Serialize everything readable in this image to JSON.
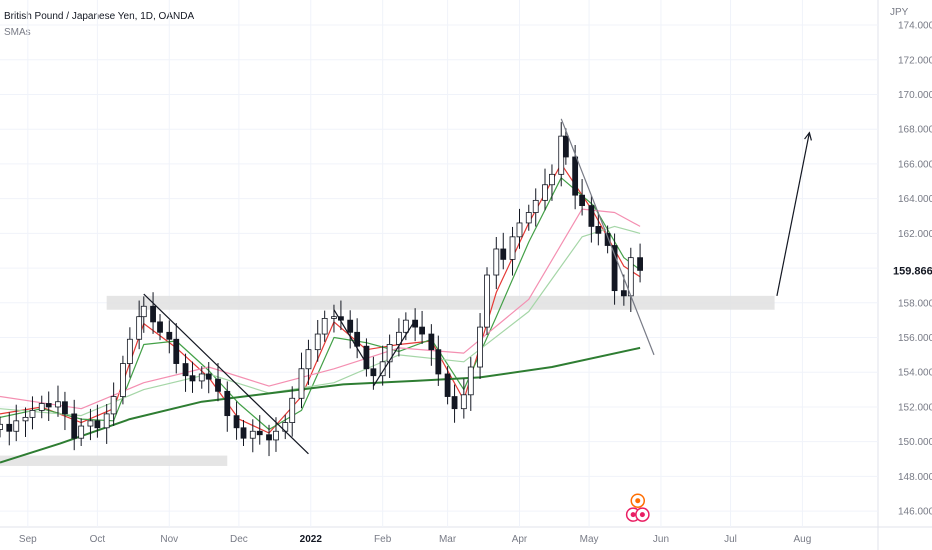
{
  "header": {
    "title": "British Pound / Japanese Yen, 1D, OANDA",
    "indicator": "SMAs"
  },
  "chart_data": {
    "type": "candlestick",
    "symbol": "British Pound / Japanese Yen",
    "interval": "1D",
    "source": "OANDA",
    "currency": "JPY",
    "current_price": "159.866",
    "ylim": [
      145.2,
      175.5
    ],
    "y_ticks": [
      "146.000",
      "148.000",
      "150.000",
      "152.000",
      "154.000",
      "156.000",
      "158.000",
      "160.000",
      "162.000",
      "164.000",
      "166.000",
      "168.000",
      "170.000",
      "172.000",
      "174.000"
    ],
    "x_ticks": [
      {
        "label": "Sep",
        "x": "2021-09-01"
      },
      {
        "label": "Oct",
        "x": "2021-10-01"
      },
      {
        "label": "Nov",
        "x": "2021-11-01"
      },
      {
        "label": "Dec",
        "x": "2021-12-01"
      },
      {
        "label": "2022",
        "x": "2022-01-01",
        "bold": true
      },
      {
        "label": "Feb",
        "x": "2022-02-01"
      },
      {
        "label": "Mar",
        "x": "2022-03-01"
      },
      {
        "label": "Apr",
        "x": "2022-04-01"
      },
      {
        "label": "May",
        "x": "2022-05-01"
      },
      {
        "label": "Jun",
        "x": "2022-06-01"
      },
      {
        "label": "Jul",
        "x": "2022-07-01"
      },
      {
        "label": "Aug",
        "x": "2022-08-01"
      }
    ],
    "closes": [
      {
        "x": "2021-08-20",
        "y": 151.0
      },
      {
        "x": "2021-08-24",
        "y": 150.6
      },
      {
        "x": "2021-08-27",
        "y": 151.2
      },
      {
        "x": "2021-08-31",
        "y": 151.4
      },
      {
        "x": "2021-09-03",
        "y": 151.8
      },
      {
        "x": "2021-09-07",
        "y": 152.2
      },
      {
        "x": "2021-09-10",
        "y": 152.0
      },
      {
        "x": "2021-09-14",
        "y": 152.3
      },
      {
        "x": "2021-09-17",
        "y": 151.6
      },
      {
        "x": "2021-09-21",
        "y": 150.2
      },
      {
        "x": "2021-09-24",
        "y": 150.9
      },
      {
        "x": "2021-09-28",
        "y": 151.2
      },
      {
        "x": "2021-10-01",
        "y": 150.8
      },
      {
        "x": "2021-10-05",
        "y": 151.6
      },
      {
        "x": "2021-10-08",
        "y": 152.6
      },
      {
        "x": "2021-10-12",
        "y": 154.5
      },
      {
        "x": "2021-10-15",
        "y": 155.9
      },
      {
        "x": "2021-10-19",
        "y": 157.2
      },
      {
        "x": "2021-10-21",
        "y": 157.8
      },
      {
        "x": "2021-10-25",
        "y": 156.9
      },
      {
        "x": "2021-10-28",
        "y": 156.3
      },
      {
        "x": "2021-11-01",
        "y": 155.9
      },
      {
        "x": "2021-11-04",
        "y": 154.5
      },
      {
        "x": "2021-11-08",
        "y": 153.8
      },
      {
        "x": "2021-11-11",
        "y": 153.5
      },
      {
        "x": "2021-11-15",
        "y": 153.9
      },
      {
        "x": "2021-11-18",
        "y": 153.6
      },
      {
        "x": "2021-11-22",
        "y": 152.9
      },
      {
        "x": "2021-11-26",
        "y": 151.5
      },
      {
        "x": "2021-11-30",
        "y": 150.8
      },
      {
        "x": "2021-12-03",
        "y": 150.2
      },
      {
        "x": "2021-12-07",
        "y": 150.6
      },
      {
        "x": "2021-12-10",
        "y": 150.4
      },
      {
        "x": "2021-12-14",
        "y": 150.1
      },
      {
        "x": "2021-12-17",
        "y": 150.6
      },
      {
        "x": "2021-12-21",
        "y": 151.1
      },
      {
        "x": "2021-12-24",
        "y": 152.5
      },
      {
        "x": "2021-12-28",
        "y": 154.2
      },
      {
        "x": "2021-12-31",
        "y": 155.3
      },
      {
        "x": "2022-01-04",
        "y": 156.2
      },
      {
        "x": "2022-01-07",
        "y": 157.1
      },
      {
        "x": "2022-01-11",
        "y": 157.2
      },
      {
        "x": "2022-01-14",
        "y": 157.0
      },
      {
        "x": "2022-01-18",
        "y": 156.3
      },
      {
        "x": "2022-01-21",
        "y": 155.5
      },
      {
        "x": "2022-01-25",
        "y": 154.2
      },
      {
        "x": "2022-01-28",
        "y": 153.8
      },
      {
        "x": "2022-02-01",
        "y": 154.6
      },
      {
        "x": "2022-02-04",
        "y": 155.6
      },
      {
        "x": "2022-02-08",
        "y": 156.3
      },
      {
        "x": "2022-02-11",
        "y": 157.0
      },
      {
        "x": "2022-02-15",
        "y": 156.6
      },
      {
        "x": "2022-02-18",
        "y": 156.2
      },
      {
        "x": "2022-02-22",
        "y": 155.3
      },
      {
        "x": "2022-02-25",
        "y": 153.9
      },
      {
        "x": "2022-03-01",
        "y": 152.6
      },
      {
        "x": "2022-03-04",
        "y": 151.9
      },
      {
        "x": "2022-03-08",
        "y": 152.7
      },
      {
        "x": "2022-03-11",
        "y": 154.3
      },
      {
        "x": "2022-03-15",
        "y": 156.6
      },
      {
        "x": "2022-03-18",
        "y": 159.6
      },
      {
        "x": "2022-03-22",
        "y": 161.1
      },
      {
        "x": "2022-03-25",
        "y": 160.5
      },
      {
        "x": "2022-03-29",
        "y": 161.8
      },
      {
        "x": "2022-04-01",
        "y": 162.6
      },
      {
        "x": "2022-04-05",
        "y": 163.2
      },
      {
        "x": "2022-04-08",
        "y": 163.9
      },
      {
        "x": "2022-04-12",
        "y": 164.8
      },
      {
        "x": "2022-04-15",
        "y": 165.4
      },
      {
        "x": "2022-04-19",
        "y": 167.6
      },
      {
        "x": "2022-04-21",
        "y": 166.4
      },
      {
        "x": "2022-04-25",
        "y": 164.2
      },
      {
        "x": "2022-04-28",
        "y": 163.6
      },
      {
        "x": "2022-05-02",
        "y": 162.4
      },
      {
        "x": "2022-05-05",
        "y": 162.0
      },
      {
        "x": "2022-05-09",
        "y": 161.3
      },
      {
        "x": "2022-05-12",
        "y": 158.7
      },
      {
        "x": "2022-05-16",
        "y": 158.4
      },
      {
        "x": "2022-05-19",
        "y": 160.6
      },
      {
        "x": "2022-05-23",
        "y": 159.866
      }
    ],
    "series": [
      {
        "name": "SMA (fast)",
        "color": "#e53935",
        "values": [
          {
            "x": "2021-08-20",
            "y": 151.6
          },
          {
            "x": "2021-09-07",
            "y": 152.0
          },
          {
            "x": "2021-09-24",
            "y": 151.1
          },
          {
            "x": "2021-10-08",
            "y": 151.9
          },
          {
            "x": "2021-10-21",
            "y": 156.8
          },
          {
            "x": "2021-11-04",
            "y": 155.4
          },
          {
            "x": "2021-11-18",
            "y": 153.7
          },
          {
            "x": "2021-12-01",
            "y": 151.3
          },
          {
            "x": "2021-12-14",
            "y": 150.5
          },
          {
            "x": "2021-12-28",
            "y": 152.6
          },
          {
            "x": "2022-01-11",
            "y": 156.9
          },
          {
            "x": "2022-01-25",
            "y": 155.3
          },
          {
            "x": "2022-02-08",
            "y": 155.6
          },
          {
            "x": "2022-02-22",
            "y": 155.8
          },
          {
            "x": "2022-03-08",
            "y": 152.4
          },
          {
            "x": "2022-03-22",
            "y": 158.6
          },
          {
            "x": "2022-04-05",
            "y": 162.6
          },
          {
            "x": "2022-04-19",
            "y": 166.0
          },
          {
            "x": "2022-05-03",
            "y": 163.2
          },
          {
            "x": "2022-05-16",
            "y": 160.1
          },
          {
            "x": "2022-05-23",
            "y": 159.5
          }
        ]
      },
      {
        "name": "SMA (medium)",
        "color": "#43a047",
        "values": [
          {
            "x": "2021-08-20",
            "y": 151.4
          },
          {
            "x": "2021-09-07",
            "y": 151.9
          },
          {
            "x": "2021-09-24",
            "y": 151.3
          },
          {
            "x": "2021-10-08",
            "y": 151.2
          },
          {
            "x": "2021-10-21",
            "y": 155.6
          },
          {
            "x": "2021-11-04",
            "y": 155.8
          },
          {
            "x": "2021-11-18",
            "y": 154.1
          },
          {
            "x": "2021-12-01",
            "y": 152.2
          },
          {
            "x": "2021-12-14",
            "y": 150.7
          },
          {
            "x": "2021-12-28",
            "y": 151.8
          },
          {
            "x": "2022-01-11",
            "y": 156.0
          },
          {
            "x": "2022-01-25",
            "y": 155.7
          },
          {
            "x": "2022-02-08",
            "y": 155.2
          },
          {
            "x": "2022-02-22",
            "y": 155.9
          },
          {
            "x": "2022-03-08",
            "y": 153.0
          },
          {
            "x": "2022-03-22",
            "y": 157.2
          },
          {
            "x": "2022-04-05",
            "y": 161.5
          },
          {
            "x": "2022-04-19",
            "y": 165.2
          },
          {
            "x": "2022-05-03",
            "y": 163.6
          },
          {
            "x": "2022-05-16",
            "y": 160.6
          },
          {
            "x": "2022-05-23",
            "y": 159.9
          }
        ]
      },
      {
        "name": "SMA (slow)",
        "color": "#f48fb1",
        "values": [
          {
            "x": "2021-08-20",
            "y": 152.6
          },
          {
            "x": "2021-09-24",
            "y": 151.9
          },
          {
            "x": "2021-10-21",
            "y": 153.4
          },
          {
            "x": "2021-11-18",
            "y": 154.3
          },
          {
            "x": "2021-12-14",
            "y": 153.2
          },
          {
            "x": "2022-01-11",
            "y": 154.2
          },
          {
            "x": "2022-02-08",
            "y": 155.4
          },
          {
            "x": "2022-03-08",
            "y": 155.1
          },
          {
            "x": "2022-04-05",
            "y": 158.2
          },
          {
            "x": "2022-04-28",
            "y": 163.4
          },
          {
            "x": "2022-05-12",
            "y": 163.2
          },
          {
            "x": "2022-05-23",
            "y": 162.4
          }
        ]
      },
      {
        "name": "SMA (long)",
        "color": "#a5d6a7",
        "values": [
          {
            "x": "2021-08-20",
            "y": 151.9
          },
          {
            "x": "2021-09-24",
            "y": 151.5
          },
          {
            "x": "2021-10-21",
            "y": 153.0
          },
          {
            "x": "2021-11-18",
            "y": 153.9
          },
          {
            "x": "2021-12-14",
            "y": 152.8
          },
          {
            "x": "2022-01-11",
            "y": 153.4
          },
          {
            "x": "2022-02-08",
            "y": 155.0
          },
          {
            "x": "2022-03-08",
            "y": 154.6
          },
          {
            "x": "2022-04-05",
            "y": 157.5
          },
          {
            "x": "2022-04-28",
            "y": 161.8
          },
          {
            "x": "2022-05-12",
            "y": 162.4
          },
          {
            "x": "2022-05-23",
            "y": 162.0
          }
        ]
      },
      {
        "name": "SMA (200)",
        "color": "#2e7d32",
        "values": [
          {
            "x": "2021-08-20",
            "y": 148.8
          },
          {
            "x": "2021-09-15",
            "y": 149.9
          },
          {
            "x": "2021-10-15",
            "y": 151.3
          },
          {
            "x": "2021-11-15",
            "y": 152.3
          },
          {
            "x": "2021-12-15",
            "y": 152.8
          },
          {
            "x": "2022-01-15",
            "y": 153.3
          },
          {
            "x": "2022-02-15",
            "y": 153.5
          },
          {
            "x": "2022-03-15",
            "y": 153.7
          },
          {
            "x": "2022-04-15",
            "y": 154.3
          },
          {
            "x": "2022-05-23",
            "y": 155.4
          }
        ]
      }
    ],
    "zones": [
      {
        "x1": "2021-08-20",
        "x2": "2021-11-26",
        "y1": 148.6,
        "y2": 149.2,
        "color": "#e0e0e0"
      },
      {
        "x1": "2021-10-05",
        "x2": "2022-07-20",
        "y1": 157.6,
        "y2": 158.4,
        "color": "#e0e0e0"
      }
    ],
    "trendlines": [
      {
        "x1": "2021-10-21",
        "y1": 158.5,
        "x2": "2021-12-31",
        "y2": 149.3,
        "color": "#131722"
      },
      {
        "x1": "2022-01-11",
        "y1": 157.6,
        "x2": "2022-01-25",
        "y2": 154.5,
        "color": "#131722"
      },
      {
        "x1": "2022-01-28",
        "y1": 153.2,
        "x2": "2022-02-15",
        "y2": 157.0,
        "color": "#131722"
      },
      {
        "x1": "2022-04-19",
        "y1": 168.6,
        "x2": "2022-05-29",
        "y2": 155.0,
        "color": "#787b86"
      },
      {
        "x1": "2022-07-21",
        "y1": 158.4,
        "x2": "2022-08-04",
        "y2": 167.8,
        "color": "#131722",
        "arrow": true
      }
    ],
    "markers": [
      {
        "x": "2022-05-22",
        "y": 146.6,
        "type": "event",
        "color": "#ff6d00"
      },
      {
        "x": "2022-05-20",
        "y": 145.8,
        "type": "flag",
        "color": "#e91e63"
      },
      {
        "x": "2022-05-24",
        "y": 145.8,
        "type": "flag",
        "color": "#e91e63"
      }
    ]
  }
}
